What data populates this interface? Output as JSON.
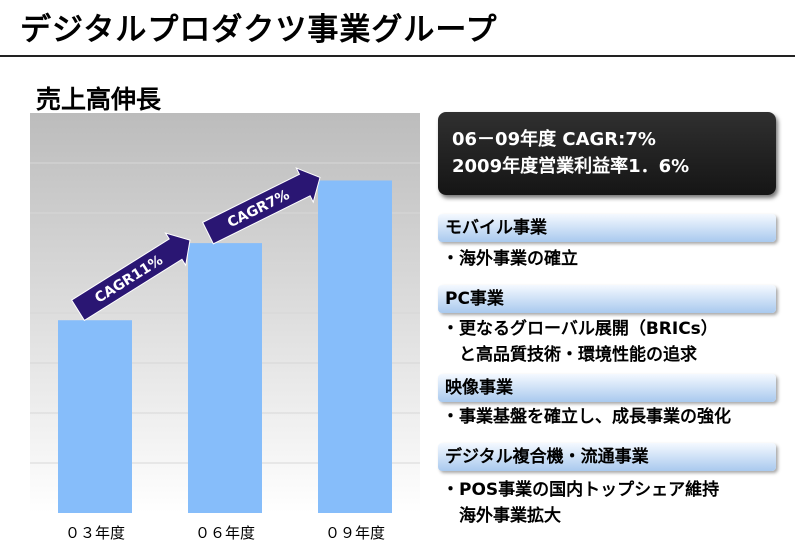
{
  "page": {
    "title": "デジタルプロダクツ事業グループ",
    "section_title": "売上高伸長"
  },
  "chart_data": {
    "type": "bar",
    "title": "売上高伸長",
    "categories": [
      "０３年度",
      "０６年度",
      "０９年度"
    ],
    "values": [
      40,
      56,
      69
    ],
    "ylim": [
      0,
      83
    ],
    "grid": true,
    "bar_color": "#86bdfa",
    "background_gradient": [
      "#bcbcbc",
      "#ffffff"
    ],
    "annotations": [
      {
        "text": "CAGR11%",
        "from": "０３年度",
        "to": "０６年度"
      },
      {
        "text": "CAGR7%",
        "from": "０６年度",
        "to": "０９年度"
      }
    ],
    "arrow_color": "#2a1673"
  },
  "summary": {
    "line1": "06－09年度 CAGR:7%",
    "line2": "2009年度営業利益率1．6%"
  },
  "businesses": [
    {
      "name": "モバイル事業",
      "lines": [
        "・海外事業の確立"
      ]
    },
    {
      "name": "PC事業",
      "lines": [
        "・更なるグローバル展開（BRICs）",
        "　と高品質技術・環境性能の追求"
      ]
    },
    {
      "name": "映像事業",
      "lines": [
        "・事業基盤を確立し、成長事業の強化"
      ]
    },
    {
      "name": "デジタル複合機・流通事業",
      "lines": [
        "・POS事業の国内トップシェア維持",
        "　海外事業拡大"
      ]
    }
  ]
}
